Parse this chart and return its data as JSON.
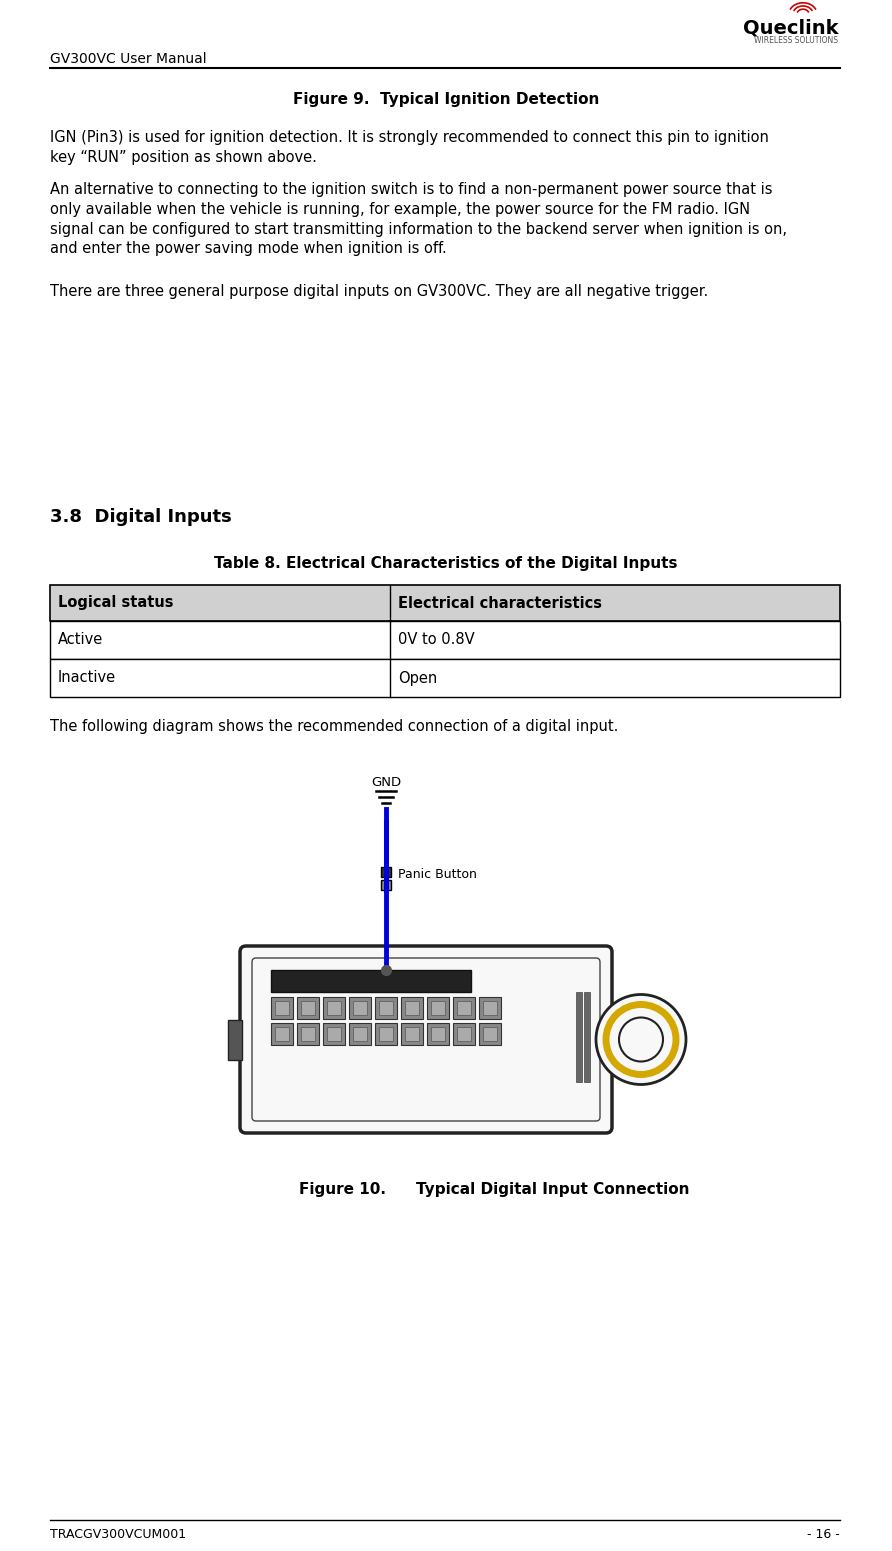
{
  "page_width": 8.92,
  "page_height": 15.51,
  "bg_color": "#ffffff",
  "header_left": "GV300VC User Manual",
  "header_font_size": 10,
  "footer_left": "TRACGV300VCUM001",
  "footer_right": "- 16 -",
  "footer_font_size": 9,
  "fig9_title": "Figure 9.  Typical Ignition Detection",
  "fig9_title_font_size": 11,
  "section_heading": "3.8  Digital Inputs",
  "section_heading_font_size": 13,
  "table_title": "Table 8. Electrical Characteristics of the Digital Inputs",
  "table_title_font_size": 11,
  "table_headers": [
    "Logical status",
    "Electrical characteristics"
  ],
  "table_rows": [
    [
      "Active",
      "0V to 0.8V"
    ],
    [
      "Inactive",
      "Open"
    ]
  ],
  "table_header_bg": "#d0d0d0",
  "table_header_fg": "#000000",
  "table_border_color": "#000000",
  "para1": "IGN (Pin3) is used for ignition detection. It is strongly recommended to connect this pin to ignition\nkey “RUN” position as shown above.",
  "para2": "An alternative to connecting to the ignition switch is to find a non-permanent power source that is\nonly available when the vehicle is running, for example, the power source for the FM radio. IGN\nsignal can be configured to start transmitting information to the backend server when ignition is on,\nand enter the power saving mode when ignition is off.",
  "para3": "There are three general purpose digital inputs on GV300VC. They are all negative trigger.",
  "para_after_table": "The following diagram shows the recommended connection of a digital input.",
  "fig10_caption_left": "Figure 10.",
  "fig10_caption_right": "Typical Digital Input Connection",
  "fig10_caption_font_size": 11,
  "body_font_size": 10.5,
  "line_color": "#000000"
}
